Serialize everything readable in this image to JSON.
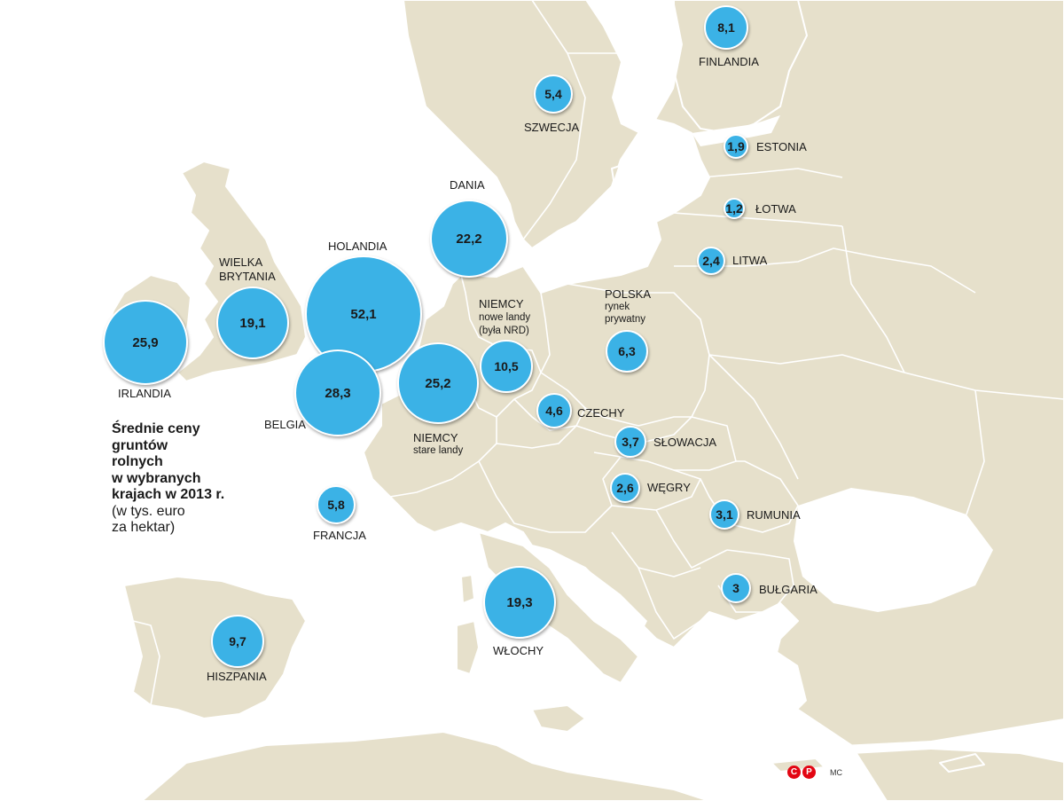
{
  "title": {
    "line1": "Średnie ceny",
    "line2": "gruntów",
    "line3": "rolnych",
    "line4": "w wybranych",
    "line5": "krajach w 2013 r.",
    "unit1": "(w tys. euro",
    "unit2": "za hektar)"
  },
  "countries": [
    {
      "name": "FINLANDIA",
      "value": "8,1"
    },
    {
      "name": "SZWECJA",
      "value": "5,4"
    },
    {
      "name": "ESTONIA",
      "value": "1,9"
    },
    {
      "name": "ŁOTWA",
      "value": "1,2"
    },
    {
      "name": "LITWA",
      "value": "2,4"
    },
    {
      "name": "DANIA",
      "value": "22,2"
    },
    {
      "name": "HOLANDIA",
      "value": "52,1"
    },
    {
      "name": "WIELKA",
      "name2": "BRYTANIA",
      "value": "19,1"
    },
    {
      "name": "IRLANDIA",
      "value": "25,9"
    },
    {
      "name": "BELGIA",
      "value": "28,3"
    },
    {
      "name": "NIEMCY",
      "sub": "stare landy",
      "value": "25,2"
    },
    {
      "name": "NIEMCY",
      "sub": "nowe landy",
      "sub2": "(była NRD)",
      "value": "10,5"
    },
    {
      "name": "POLSKA",
      "sub": "rynek",
      "sub2": "prywatny",
      "value": "6,3"
    },
    {
      "name": "CZECHY",
      "value": "4,6"
    },
    {
      "name": "SŁOWACJA",
      "value": "3,7"
    },
    {
      "name": "WĘGRY",
      "value": "2,6"
    },
    {
      "name": "RUMUNIA",
      "value": "3,1"
    },
    {
      "name": "BUŁGARIA",
      "value": "3"
    },
    {
      "name": "FRANCJA",
      "value": "5,8"
    },
    {
      "name": "WŁOCHY",
      "value": "19,3"
    },
    {
      "name": "HISZPANIA",
      "value": "9,7"
    }
  ],
  "colors": {
    "bubble": "#3bb2e6",
    "land": "#e6e0cb",
    "sea": "#ffffff",
    "logo": "#e30613"
  },
  "logo": {
    "c": "C",
    "p": "P"
  },
  "credit": "MC"
}
